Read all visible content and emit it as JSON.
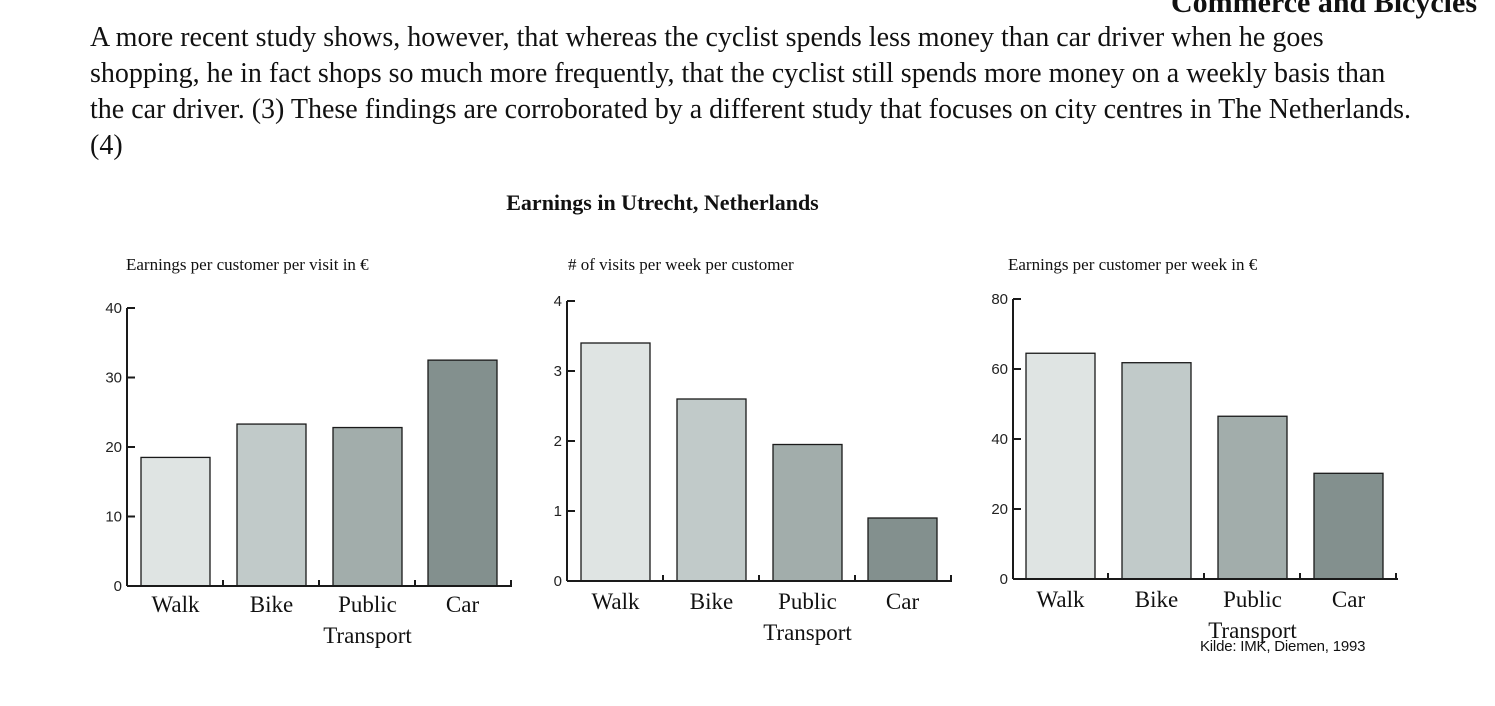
{
  "page": {
    "section_title": "Commerce and Bicycles",
    "intro_text": "A more recent study shows, however, that whereas the cyclist spends less money than car driver when he goes shopping, he in fact shops so much more frequently, that the cyclist still spends more money on a weekly basis than the car driver. (3) These findings are corroborated by a different study that focuses on city centres in The Netherlands. (4)",
    "figure_title": "Earnings in Utrecht, Netherlands",
    "source": "Kilde: IMK, Diemen, 1993"
  },
  "colors": {
    "walk": "#dfe4e3",
    "bike": "#c1cac9",
    "public": "#a2adab",
    "car": "#83908e",
    "stroke": "#1a1a1a"
  },
  "chart_data": [
    {
      "type": "bar",
      "title": "Earnings per customer per visit in €",
      "categories": [
        "Walk",
        "Bike",
        "Public Transport",
        "Car"
      ],
      "category_lines": [
        [
          "Walk"
        ],
        [
          "Bike"
        ],
        [
          "Public",
          "Transport"
        ],
        [
          "Car"
        ]
      ],
      "values": [
        18.5,
        23.3,
        22.8,
        32.5
      ],
      "yticks": [
        0,
        10,
        20,
        30,
        40
      ],
      "ylim": [
        0,
        40
      ],
      "xlabel": "",
      "ylabel": ""
    },
    {
      "type": "bar",
      "title": "# of visits per week per customer",
      "categories": [
        "Walk",
        "Bike",
        "Public Transport",
        "Car"
      ],
      "category_lines": [
        [
          "Walk"
        ],
        [
          "Bike"
        ],
        [
          "Public",
          "Transport"
        ],
        [
          "Car"
        ]
      ],
      "values": [
        3.4,
        2.6,
        1.95,
        0.9
      ],
      "yticks": [
        0,
        1,
        2,
        3,
        4
      ],
      "ylim": [
        0,
        4
      ],
      "xlabel": "",
      "ylabel": ""
    },
    {
      "type": "bar",
      "title": "Earnings per customer per week in €",
      "categories": [
        "Walk",
        "Bike",
        "Public Transport",
        "Car"
      ],
      "category_lines": [
        [
          "Walk"
        ],
        [
          "Bike"
        ],
        [
          "Public",
          "Transport"
        ],
        [
          "Car"
        ]
      ],
      "values": [
        64.5,
        61.8,
        46.5,
        30.2
      ],
      "yticks": [
        0,
        20,
        40,
        60,
        80
      ],
      "ylim": [
        0,
        80
      ],
      "xlabel": "",
      "ylabel": ""
    }
  ]
}
